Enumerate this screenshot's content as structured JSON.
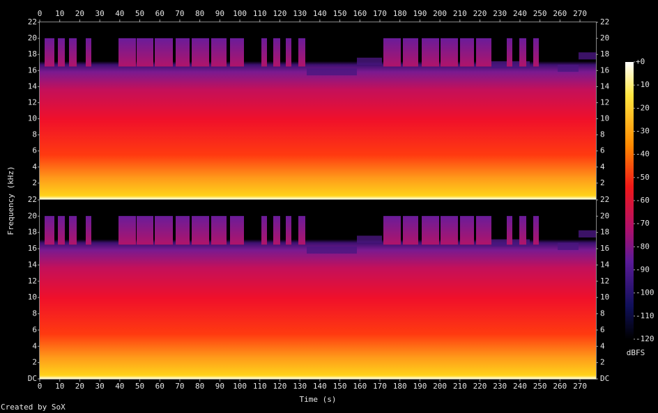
{
  "chart_data": {
    "type": "spectrogram",
    "x_label": "Time (s)",
    "y_label": "Frequency (kHz)",
    "credit": "Created by SoX",
    "xlim": [
      0,
      278
    ],
    "xticks": [
      0,
      10,
      20,
      30,
      40,
      50,
      60,
      70,
      80,
      90,
      100,
      110,
      120,
      130,
      140,
      150,
      160,
      170,
      180,
      190,
      200,
      210,
      220,
      230,
      240,
      250,
      260,
      270
    ],
    "channels": [
      {
        "ylim": [
          0,
          22
        ],
        "yticks": [
          2,
          4,
          6,
          8,
          10,
          12,
          14,
          16,
          18,
          20,
          22
        ]
      },
      {
        "ylim": [
          0,
          22
        ],
        "yticks": [
          {
            "value": 0,
            "label": "DC"
          },
          2,
          4,
          6,
          8,
          10,
          12,
          14,
          16,
          18,
          20,
          22
        ]
      }
    ],
    "colorbar": {
      "label": "dBFS",
      "lim": [
        -120,
        0
      ],
      "ticks": [
        {
          "value": 0,
          "label": "+0"
        },
        -10,
        -20,
        -30,
        -40,
        -50,
        -60,
        -70,
        -80,
        -90,
        -100,
        -110,
        -120
      ]
    }
  }
}
